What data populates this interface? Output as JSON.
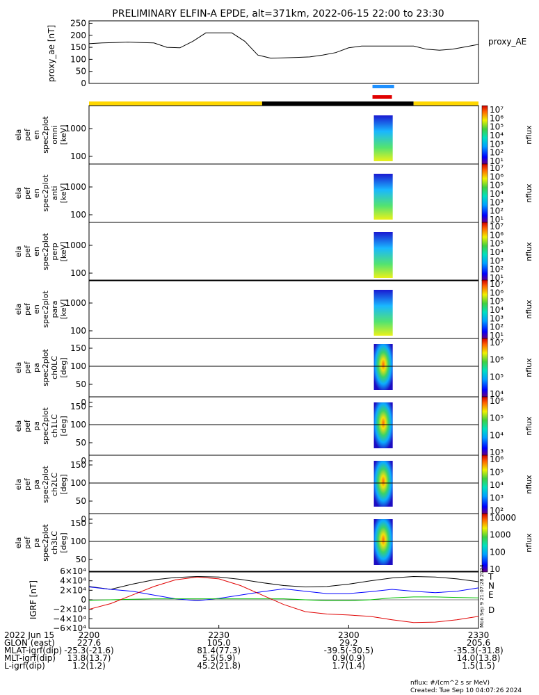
{
  "title": "PRELIMINARY ELFIN-A EPDE, alt=371km, 2022-06-15 22:00 to 23:30",
  "colors": {
    "bar_day": "#ffd700",
    "bar_night": "#000000",
    "marker_blue": "#1e90ff",
    "marker_red": "#e00000",
    "comp_T": "#000000",
    "comp_N": "#0000ff",
    "comp_E": "#00c000",
    "comp_D": "#e00000"
  },
  "proxy_ae": {
    "ylabel": "proxy_ae [nT]",
    "legend": "proxy_AE",
    "yticks": [
      "250",
      "200",
      "150",
      "100",
      "50",
      "0"
    ],
    "ylim": [
      0,
      260
    ]
  },
  "spec_panels": [
    {
      "label_lines": [
        "ela",
        "pef",
        "en",
        "spec2plot",
        "omni",
        "[keV]"
      ],
      "yticks": [
        "1000",
        "100"
      ],
      "cbar_ticks": [
        "10⁷",
        "10⁶",
        "10⁵",
        "10⁴",
        "10³",
        "10²",
        "10¹"
      ],
      "cbar_label": "nflux"
    },
    {
      "label_lines": [
        "ela",
        "pef",
        "en",
        "spec2plot",
        "anti",
        "[keV]"
      ],
      "yticks": [
        "1000",
        "100"
      ],
      "cbar_ticks": [
        "10⁷",
        "10⁶",
        "10⁵",
        "10⁴",
        "10³",
        "10²",
        "10¹"
      ],
      "cbar_label": "nflux"
    },
    {
      "label_lines": [
        "ela",
        "pef",
        "en",
        "spec2plot",
        "perp",
        "[keV]"
      ],
      "yticks": [
        "1000",
        "100"
      ],
      "cbar_ticks": [
        "10⁷",
        "10⁶",
        "10⁵",
        "10⁴",
        "10³",
        "10²",
        "10¹"
      ],
      "cbar_label": "nflux"
    },
    {
      "label_lines": [
        "ela",
        "pef",
        "en",
        "spec2plot",
        "para",
        "[keV]"
      ],
      "yticks": [
        "1000",
        "100"
      ],
      "cbar_ticks": [
        "10⁷",
        "10⁶",
        "10⁵",
        "10⁴",
        "10³",
        "10²",
        "10¹"
      ],
      "cbar_label": "nflux"
    },
    {
      "label_lines": [
        "ela",
        "pef",
        "pa",
        "spec2plot",
        "ch0LC",
        "[deg]"
      ],
      "yticks": [
        "150",
        "100",
        "50",
        "0"
      ],
      "cbar_ticks": [
        "10⁷",
        "10⁶",
        "10⁵",
        "10⁴"
      ],
      "cbar_label": "nflux"
    },
    {
      "label_lines": [
        "ela",
        "pef",
        "pa",
        "spec2plot",
        "ch1LC",
        "[deg]"
      ],
      "yticks": [
        "150",
        "100",
        "50",
        "0"
      ],
      "cbar_ticks": [
        "10⁶",
        "10⁵",
        "10⁴",
        "10³"
      ],
      "cbar_label": "nflux"
    },
    {
      "label_lines": [
        "ela",
        "pef",
        "pa",
        "spec2plot",
        "ch2LC",
        "[deg]"
      ],
      "yticks": [
        "150",
        "100",
        "50",
        "0"
      ],
      "cbar_ticks": [
        "10⁶",
        "10⁵",
        "10⁴",
        "10³",
        "10²"
      ],
      "cbar_label": "nflux"
    },
    {
      "label_lines": [
        "ela",
        "pef",
        "pa",
        "spec2plot",
        "ch3LC",
        "[deg]"
      ],
      "yticks": [
        "150",
        "100",
        "50"
      ],
      "cbar_ticks": [
        "10000",
        "1000",
        "100",
        "10"
      ],
      "cbar_label": "nflux"
    }
  ],
  "igrf": {
    "ylabel": "IGRF [nT]",
    "yticks": [
      "6×10⁴",
      "4×10⁴",
      "2×10⁴",
      "0",
      "−2×10⁴",
      "−4×10⁴",
      "−6×10⁴"
    ],
    "ylim": [
      -60000,
      60000
    ],
    "legend": [
      "T",
      "N",
      "E",
      "D"
    ]
  },
  "axis_rows": [
    {
      "label": "2022 Jun 15",
      "values": [
        "2200",
        "2230",
        "2300",
        "2330"
      ]
    },
    {
      "label": "GLON (east)",
      "values": [
        "227.6",
        "105.0",
        "29.2",
        "205.6"
      ]
    },
    {
      "label": "MLAT-igrf(dip)",
      "values": [
        "-25.3(-21.6)",
        "81.4(77.3)",
        "-39.5(-30.5)",
        "-35.3(-31.8)"
      ]
    },
    {
      "label": "MLT-igrf(dip)",
      "values": [
        "13.8(13.7)",
        "5.5(5.9)",
        "0.9(0.9)",
        "14.0(13.8)"
      ]
    },
    {
      "label": "L-igrf(dip)",
      "values": [
        "1.2(1.2)",
        "45.2(21.8)",
        "1.7(1.4)",
        "1.5(1.5)"
      ]
    }
  ],
  "side_stamp": "Mon Sep 9 21:07:28 2024",
  "footer": {
    "units": "nflux: #/(cm^2 s sr MeV)",
    "created": "Created: Tue Sep 10 04:07:26 2024"
  },
  "chart_data": {
    "type": "line",
    "x_ticks": [
      "2200",
      "2230",
      "2300",
      "2330"
    ],
    "xlim_minutes": [
      0,
      90
    ],
    "proxy_ae_series": {
      "name": "proxy_AE",
      "x_minutes": [
        0,
        3,
        6,
        9,
        12,
        15,
        18,
        21,
        24,
        27,
        30,
        33,
        36,
        39,
        42,
        45,
        48,
        51,
        54,
        57,
        60,
        63,
        66,
        69,
        72,
        75,
        78,
        81,
        84,
        87,
        90
      ],
      "values": [
        165,
        168,
        170,
        172,
        170,
        168,
        150,
        148,
        175,
        210,
        210,
        210,
        175,
        118,
        105,
        106,
        108,
        110,
        118,
        128,
        148,
        155,
        155,
        155,
        155,
        155,
        142,
        138,
        142,
        152,
        162
      ]
    },
    "igrf_series": [
      {
        "name": "T",
        "x_minutes": [
          0,
          5,
          10,
          15,
          20,
          25,
          30,
          35,
          40,
          45,
          50,
          55,
          60,
          65,
          70,
          75,
          80,
          85,
          90
        ],
        "values": [
          28000,
          22000,
          33000,
          42000,
          47000,
          49000,
          48000,
          43000,
          36000,
          30000,
          27000,
          28000,
          33000,
          40000,
          46000,
          49000,
          48000,
          44000,
          38000
        ]
      },
      {
        "name": "N",
        "x_minutes": [
          0,
          5,
          10,
          15,
          20,
          25,
          30,
          35,
          40,
          45,
          50,
          55,
          60,
          65,
          70,
          75,
          80,
          85,
          90
        ],
        "values": [
          27000,
          22000,
          18000,
          10000,
          2000,
          -2000,
          3000,
          10000,
          17000,
          23000,
          18000,
          13000,
          13000,
          17000,
          22000,
          18000,
          15000,
          18000,
          25000
        ]
      },
      {
        "name": "E",
        "x_minutes": [
          0,
          5,
          10,
          15,
          20,
          25,
          30,
          35,
          40,
          45,
          50,
          55,
          60,
          65,
          70,
          75,
          80,
          85,
          90
        ],
        "values": [
          -1000,
          0,
          1000,
          2000,
          2000,
          2000,
          2000,
          2000,
          2000,
          2000,
          0,
          -2000,
          -2000,
          0,
          4000,
          6000,
          6000,
          5000,
          4000
        ]
      },
      {
        "name": "D",
        "x_minutes": [
          0,
          5,
          10,
          15,
          20,
          25,
          30,
          35,
          40,
          45,
          50,
          55,
          60,
          65,
          70,
          75,
          80,
          85,
          90
        ],
        "values": [
          -20000,
          -8000,
          10000,
          28000,
          42000,
          48000,
          44000,
          30000,
          10000,
          -10000,
          -25000,
          -30000,
          -32000,
          -35000,
          -42000,
          -48000,
          -47000,
          -42000,
          -35000
        ]
      }
    ],
    "orbit_bar": {
      "segments": [
        {
          "start_min": 0,
          "end_min": 40,
          "state": "day"
        },
        {
          "start_min": 40,
          "end_min": 75,
          "state": "night"
        },
        {
          "start_min": 75,
          "end_min": 90,
          "state": "day"
        }
      ]
    },
    "science_zone_min": [
      65.5,
      70.5
    ],
    "burst_interval_min": [
      65.5,
      70
    ]
  }
}
